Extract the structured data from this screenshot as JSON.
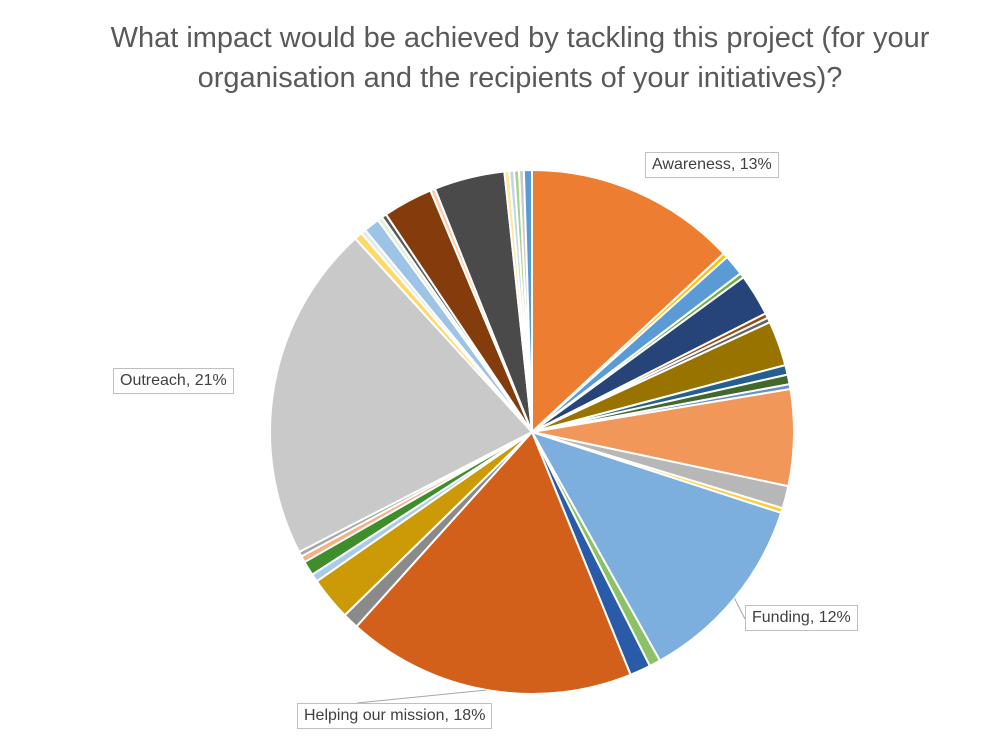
{
  "chart_data": {
    "type": "pie",
    "title_lines": [
      "What impact would be achieved by tackling this project (for your",
      "organisation and the recipients of your initiatives)?"
    ],
    "slices": [
      {
        "value": 13.2,
        "color": "#ED7D31"
      },
      {
        "value": 0.3,
        "color": "#FFC000"
      },
      {
        "value": 1.3,
        "color": "#5B9BD5"
      },
      {
        "value": 0.3,
        "color": "#70AD47"
      },
      {
        "value": 2.6,
        "color": "#264478"
      },
      {
        "value": 0.3,
        "color": "#9E480E"
      },
      {
        "value": 0.3,
        "color": "#636363"
      },
      {
        "value": 2.8,
        "color": "#997300"
      },
      {
        "value": 0.6,
        "color": "#255E91"
      },
      {
        "value": 0.6,
        "color": "#43682B"
      },
      {
        "value": 0.3,
        "color": "#698ED0"
      },
      {
        "value": 6.0,
        "color": "#F1975A"
      },
      {
        "value": 1.4,
        "color": "#B7B7B7"
      },
      {
        "value": 0.3,
        "color": "#FFCD33"
      },
      {
        "value": 12.0,
        "color": "#7CAFDD"
      },
      {
        "value": 0.7,
        "color": "#8CC168"
      },
      {
        "value": 1.3,
        "color": "#2A5BA8"
      },
      {
        "value": 18.0,
        "color": "#D2601A"
      },
      {
        "value": 1.0,
        "color": "#8A8A8A"
      },
      {
        "value": 2.7,
        "color": "#CC9A06"
      },
      {
        "value": 0.5,
        "color": "#A9CBEB"
      },
      {
        "value": 0.9,
        "color": "#3F8D2B"
      },
      {
        "value": 0.4,
        "color": "#F4B183"
      },
      {
        "value": 0.3,
        "color": "#A5A5A5"
      },
      {
        "value": 21.0,
        "color": "#C9C9C9"
      },
      {
        "value": 0.5,
        "color": "#FFD966"
      },
      {
        "value": 0.3,
        "color": "#DEEBF7"
      },
      {
        "value": 1.0,
        "color": "#9DC3E6"
      },
      {
        "value": 0.3,
        "color": "#E2EFDA"
      },
      {
        "value": 0.3,
        "color": "#595959"
      },
      {
        "value": 3.1,
        "color": "#843C0C"
      },
      {
        "value": 0.3,
        "color": "#F8CBAD"
      },
      {
        "value": 4.4,
        "color": "#4A4A4A"
      },
      {
        "value": 0.3,
        "color": "#FFE699"
      },
      {
        "value": 0.3,
        "color": "#BDD7EE"
      },
      {
        "value": 0.3,
        "color": "#A9D18E"
      },
      {
        "value": 0.3,
        "color": "#C9C9C9"
      },
      {
        "value": 0.5,
        "color": "#5B9BD5"
      }
    ],
    "data_labels": [
      {
        "text": "Awareness, 13%",
        "slice": 0
      },
      {
        "text": "Funding, 12%",
        "slice": 14
      },
      {
        "text": "Helping our mission, 18%",
        "slice": 17
      },
      {
        "text": "Outreach, 21%",
        "slice": 24
      }
    ],
    "legend": "none"
  }
}
